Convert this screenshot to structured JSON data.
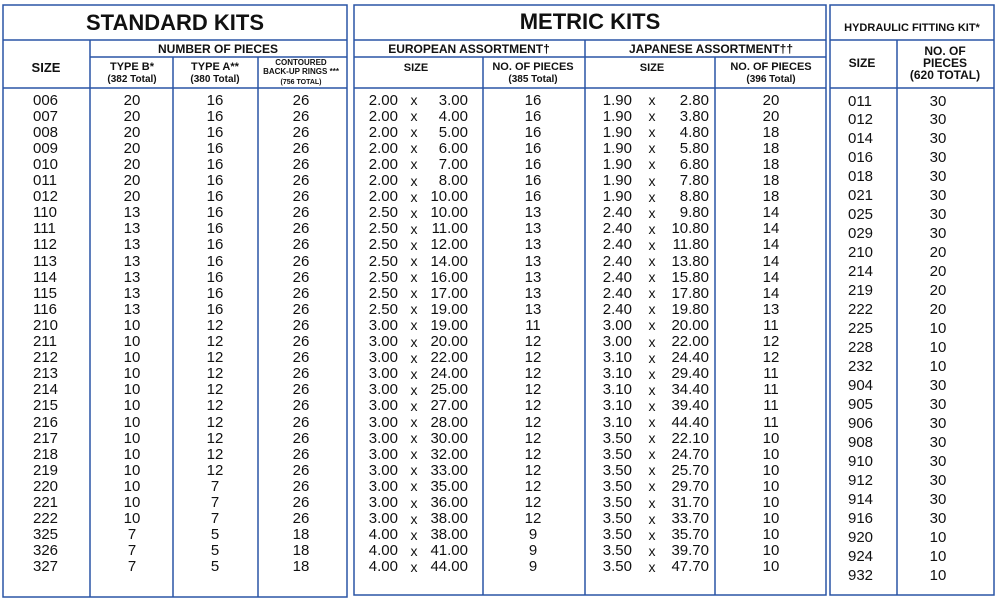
{
  "standard_kits": {
    "title": "STANDARD KITS",
    "size_header": "SIZE",
    "group_header": "NUMBER OF PIECES",
    "columns": [
      {
        "name": [
          "TYPE B*"
        ],
        "total": "(382 Total)"
      },
      {
        "name": [
          "TYPE A**"
        ],
        "total": "(380 Total)"
      },
      {
        "name": [
          "CONTOURED",
          "BACK-UP RINGS ***"
        ],
        "total": "(756 TOTAL)"
      }
    ],
    "rows": [
      [
        "006",
        "20",
        "16",
        "26"
      ],
      [
        "007",
        "20",
        "16",
        "26"
      ],
      [
        "008",
        "20",
        "16",
        "26"
      ],
      [
        "009",
        "20",
        "16",
        "26"
      ],
      [
        "010",
        "20",
        "16",
        "26"
      ],
      [
        "011",
        "20",
        "16",
        "26"
      ],
      [
        "012",
        "20",
        "16",
        "26"
      ],
      [
        "110",
        "13",
        "16",
        "26"
      ],
      [
        "111",
        "13",
        "16",
        "26"
      ],
      [
        "112",
        "13",
        "16",
        "26"
      ],
      [
        "113",
        "13",
        "16",
        "26"
      ],
      [
        "114",
        "13",
        "16",
        "26"
      ],
      [
        "115",
        "13",
        "16",
        "26"
      ],
      [
        "116",
        "13",
        "16",
        "26"
      ],
      [
        "210",
        "10",
        "12",
        "26"
      ],
      [
        "211",
        "10",
        "12",
        "26"
      ],
      [
        "212",
        "10",
        "12",
        "26"
      ],
      [
        "213",
        "10",
        "12",
        "26"
      ],
      [
        "214",
        "10",
        "12",
        "26"
      ],
      [
        "215",
        "10",
        "12",
        "26"
      ],
      [
        "216",
        "10",
        "12",
        "26"
      ],
      [
        "217",
        "10",
        "12",
        "26"
      ],
      [
        "218",
        "10",
        "12",
        "26"
      ],
      [
        "219",
        "10",
        "12",
        "26"
      ],
      [
        "220",
        "10",
        "7",
        "26"
      ],
      [
        "221",
        "10",
        "7",
        "26"
      ],
      [
        "222",
        "10",
        "7",
        "26"
      ],
      [
        "325",
        "7",
        "5",
        "18"
      ],
      [
        "326",
        "7",
        "5",
        "18"
      ],
      [
        "327",
        "7",
        "5",
        "18"
      ]
    ]
  },
  "metric_kits": {
    "title": "METRIC KITS",
    "european": {
      "title": "EUROPEAN ASSORTMENT†",
      "size_header": "SIZE",
      "count_header": "NO. OF PIECES",
      "count_total": "(385 Total)",
      "rows": [
        [
          "2.00",
          "x",
          "3.00",
          "16"
        ],
        [
          "2.00",
          "x",
          "4.00",
          "16"
        ],
        [
          "2.00",
          "x",
          "5.00",
          "16"
        ],
        [
          "2.00",
          "x",
          "6.00",
          "16"
        ],
        [
          "2.00",
          "x",
          "7.00",
          "16"
        ],
        [
          "2.00",
          "x",
          "8.00",
          "16"
        ],
        [
          "2.00",
          "x",
          "10.00",
          "16"
        ],
        [
          "2.50",
          "x",
          "10.00",
          "13"
        ],
        [
          "2.50",
          "x",
          "11.00",
          "13"
        ],
        [
          "2.50",
          "x",
          "12.00",
          "13"
        ],
        [
          "2.50",
          "x",
          "14.00",
          "13"
        ],
        [
          "2.50",
          "x",
          "16.00",
          "13"
        ],
        [
          "2.50",
          "x",
          "17.00",
          "13"
        ],
        [
          "2.50",
          "x",
          "19.00",
          "13"
        ],
        [
          "3.00",
          "x",
          "19.00",
          "11"
        ],
        [
          "3.00",
          "x",
          "20.00",
          "12"
        ],
        [
          "3.00",
          "x",
          "22.00",
          "12"
        ],
        [
          "3.00",
          "x",
          "24.00",
          "12"
        ],
        [
          "3.00",
          "x",
          "25.00",
          "12"
        ],
        [
          "3.00",
          "x",
          "27.00",
          "12"
        ],
        [
          "3.00",
          "x",
          "28.00",
          "12"
        ],
        [
          "3.00",
          "x",
          "30.00",
          "12"
        ],
        [
          "3.00",
          "x",
          "32.00",
          "12"
        ],
        [
          "3.00",
          "x",
          "33.00",
          "12"
        ],
        [
          "3.00",
          "x",
          "35.00",
          "12"
        ],
        [
          "3.00",
          "x",
          "36.00",
          "12"
        ],
        [
          "3.00",
          "x",
          "38.00",
          "12"
        ],
        [
          "4.00",
          "x",
          "38.00",
          "9"
        ],
        [
          "4.00",
          "x",
          "41.00",
          "9"
        ],
        [
          "4.00",
          "x",
          "44.00",
          "9"
        ]
      ]
    },
    "japanese": {
      "title": "JAPANESE ASSORTMENT††",
      "size_header": "SIZE",
      "count_header": "NO. OF PIECES",
      "count_total": "(396 Total)",
      "rows": [
        [
          "1.90",
          "x",
          "2.80",
          "20"
        ],
        [
          "1.90",
          "x",
          "3.80",
          "20"
        ],
        [
          "1.90",
          "x",
          "4.80",
          "18"
        ],
        [
          "1.90",
          "x",
          "5.80",
          "18"
        ],
        [
          "1.90",
          "x",
          "6.80",
          "18"
        ],
        [
          "1.90",
          "x",
          "7.80",
          "18"
        ],
        [
          "1.90",
          "x",
          "8.80",
          "18"
        ],
        [
          "2.40",
          "x",
          "9.80",
          "14"
        ],
        [
          "2.40",
          "x",
          "10.80",
          "14"
        ],
        [
          "2.40",
          "x",
          "11.80",
          "14"
        ],
        [
          "2.40",
          "x",
          "13.80",
          "14"
        ],
        [
          "2.40",
          "x",
          "15.80",
          "14"
        ],
        [
          "2.40",
          "x",
          "17.80",
          "14"
        ],
        [
          "2.40",
          "x",
          "19.80",
          "13"
        ],
        [
          "3.00",
          "x",
          "20.00",
          "11"
        ],
        [
          "3.00",
          "x",
          "22.00",
          "12"
        ],
        [
          "3.10",
          "x",
          "24.40",
          "12"
        ],
        [
          "3.10",
          "x",
          "29.40",
          "11"
        ],
        [
          "3.10",
          "x",
          "34.40",
          "11"
        ],
        [
          "3.10",
          "x",
          "39.40",
          "11"
        ],
        [
          "3.10",
          "x",
          "44.40",
          "11"
        ],
        [
          "3.50",
          "x",
          "22.10",
          "10"
        ],
        [
          "3.50",
          "x",
          "24.70",
          "10"
        ],
        [
          "3.50",
          "x",
          "25.70",
          "10"
        ],
        [
          "3.50",
          "x",
          "29.70",
          "10"
        ],
        [
          "3.50",
          "x",
          "31.70",
          "10"
        ],
        [
          "3.50",
          "x",
          "33.70",
          "10"
        ],
        [
          "3.50",
          "x",
          "35.70",
          "10"
        ],
        [
          "3.50",
          "x",
          "39.70",
          "10"
        ],
        [
          "3.50",
          "x",
          "47.70",
          "10"
        ]
      ]
    }
  },
  "hydraulic_fitting_kit": {
    "title": "HYDRAULIC FITTING KIT*",
    "size_header": "SIZE",
    "count_header": [
      "NO. OF",
      "PIECES"
    ],
    "count_total": "(620 TOTAL)",
    "rows": [
      [
        "011",
        "30"
      ],
      [
        "012",
        "30"
      ],
      [
        "014",
        "30"
      ],
      [
        "016",
        "30"
      ],
      [
        "018",
        "30"
      ],
      [
        "021",
        "30"
      ],
      [
        "025",
        "30"
      ],
      [
        "029",
        "30"
      ],
      [
        "210",
        "20"
      ],
      [
        "214",
        "20"
      ],
      [
        "219",
        "20"
      ],
      [
        "222",
        "20"
      ],
      [
        "225",
        "10"
      ],
      [
        "228",
        "10"
      ],
      [
        "232",
        "10"
      ],
      [
        "904",
        "30"
      ],
      [
        "905",
        "30"
      ],
      [
        "906",
        "30"
      ],
      [
        "908",
        "30"
      ],
      [
        "910",
        "30"
      ],
      [
        "912",
        "30"
      ],
      [
        "914",
        "30"
      ],
      [
        "916",
        "30"
      ],
      [
        "920",
        "10"
      ],
      [
        "924",
        "10"
      ],
      [
        "932",
        "10"
      ]
    ]
  }
}
